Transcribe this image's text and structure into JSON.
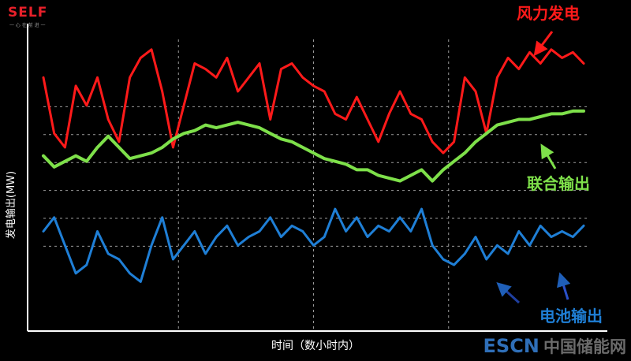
{
  "brand": {
    "logo": "SELF",
    "logo_sub": "一 心 在 前 进 一"
  },
  "watermark": {
    "en": "ESCN",
    "cn": "中国储能网"
  },
  "colors": {
    "background": "#000000",
    "wind": "#ff1a1a",
    "combined": "#7ee04a",
    "battery": "#1f7fd6",
    "axis": "#ffffff",
    "grid": "#9a9a9a"
  },
  "chart_data": {
    "type": "line",
    "title": "",
    "xlabel": "时间（数小时内）",
    "ylabel": "发电输出(MW)",
    "grid": true,
    "xlim": [
      0,
      100
    ],
    "ylim": [
      0,
      100
    ],
    "series": [
      {
        "name": "风力发电",
        "color": "#ff1a1a",
        "x": [
          0,
          2,
          4,
          6,
          8,
          10,
          12,
          14,
          16,
          18,
          20,
          22,
          24,
          26,
          28,
          30,
          32,
          34,
          36,
          38,
          40,
          42,
          44,
          46,
          48,
          50,
          52,
          54,
          56,
          58,
          60,
          62,
          64,
          66,
          68,
          70,
          72,
          74,
          76,
          78,
          80,
          82,
          84,
          86,
          88,
          90,
          92,
          94,
          96,
          98,
          100
        ],
        "values": [
          85,
          65,
          60,
          82,
          75,
          85,
          70,
          62,
          85,
          92,
          95,
          80,
          60,
          75,
          90,
          88,
          85,
          92,
          80,
          85,
          90,
          70,
          88,
          90,
          85,
          82,
          80,
          72,
          70,
          78,
          70,
          62,
          72,
          80,
          72,
          70,
          62,
          58,
          62,
          85,
          80,
          65,
          85,
          92,
          88,
          94,
          90,
          95,
          92,
          94,
          90
        ]
      },
      {
        "name": "联合输出",
        "color": "#7ee04a",
        "x": [
          0,
          2,
          4,
          6,
          8,
          10,
          12,
          14,
          16,
          18,
          20,
          22,
          24,
          26,
          28,
          30,
          32,
          34,
          36,
          38,
          40,
          42,
          44,
          46,
          48,
          50,
          52,
          54,
          56,
          58,
          60,
          62,
          64,
          66,
          68,
          70,
          72,
          74,
          76,
          78,
          80,
          82,
          84,
          86,
          88,
          90,
          92,
          94,
          96,
          98,
          100
        ],
        "values": [
          57,
          53,
          55,
          57,
          55,
          60,
          64,
          60,
          56,
          57,
          58,
          60,
          63,
          65,
          66,
          68,
          67,
          68,
          69,
          68,
          67,
          65,
          63,
          62,
          60,
          58,
          56,
          55,
          54,
          52,
          52,
          50,
          49,
          48,
          50,
          52,
          48,
          52,
          55,
          58,
          62,
          65,
          68,
          69,
          70,
          70,
          71,
          72,
          72,
          73,
          73
        ]
      },
      {
        "name": "电池输出",
        "color": "#1f7fd6",
        "x": [
          0,
          2,
          4,
          6,
          8,
          10,
          12,
          14,
          16,
          18,
          20,
          22,
          24,
          26,
          28,
          30,
          32,
          34,
          36,
          38,
          40,
          42,
          44,
          46,
          48,
          50,
          52,
          54,
          56,
          58,
          60,
          62,
          64,
          66,
          68,
          70,
          72,
          74,
          76,
          78,
          80,
          82,
          84,
          86,
          88,
          90,
          92,
          94,
          96,
          98,
          100
        ],
        "values": [
          30,
          35,
          25,
          15,
          18,
          30,
          22,
          20,
          15,
          12,
          25,
          35,
          20,
          25,
          30,
          22,
          28,
          32,
          25,
          28,
          30,
          35,
          28,
          32,
          30,
          25,
          28,
          38,
          30,
          35,
          28,
          32,
          30,
          35,
          30,
          38,
          25,
          20,
          18,
          22,
          28,
          20,
          25,
          22,
          30,
          25,
          32,
          28,
          30,
          28,
          32
        ]
      }
    ],
    "annotations": [
      "风力发电",
      "联合输出",
      "电池输出"
    ]
  }
}
